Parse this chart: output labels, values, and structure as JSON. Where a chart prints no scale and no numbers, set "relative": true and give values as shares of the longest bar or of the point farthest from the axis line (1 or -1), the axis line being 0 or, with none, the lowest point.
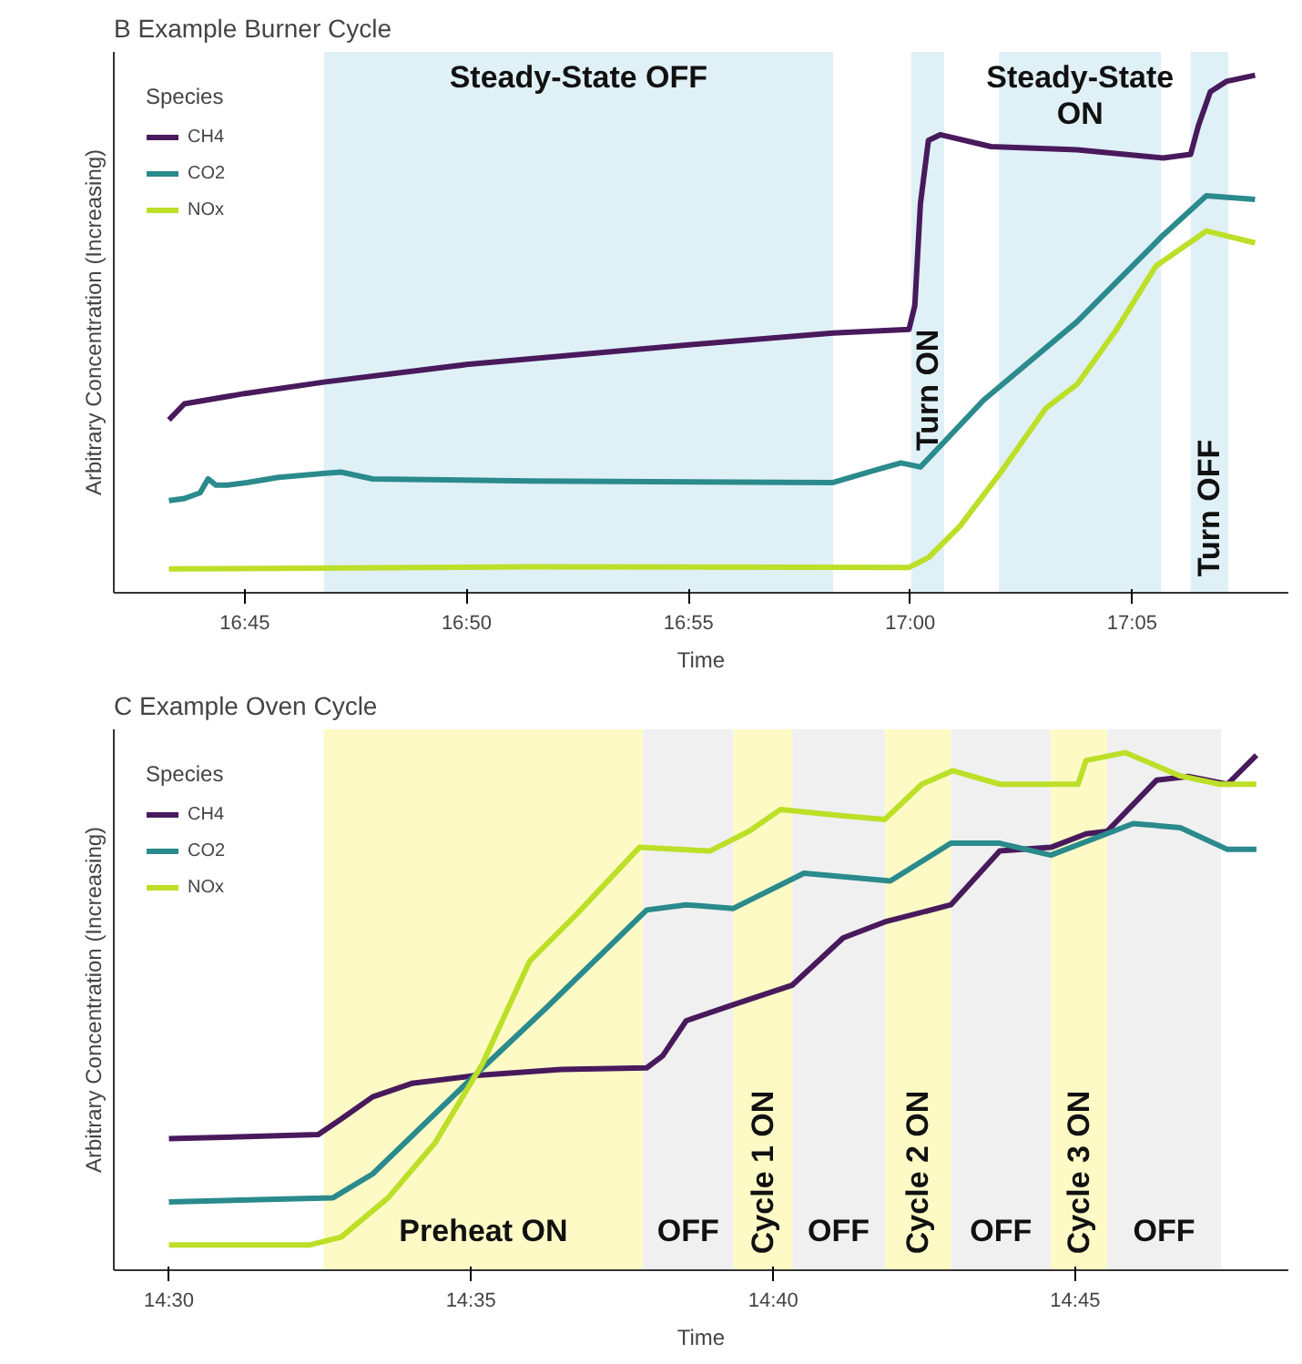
{
  "chart_data": [
    {
      "type": "line",
      "relative": true,
      "title": "B Example Burner Cycle",
      "xlabel": "Time",
      "ylabel": "Arbitrary Concentration (Increasing)",
      "legend_title": "Species",
      "legend": "top left",
      "grid": false,
      "xlim": [
        16.7008,
        17.142
      ],
      "xticks": [
        {
          "value": 16.75,
          "label": "16:45"
        },
        {
          "value": 16.8333,
          "label": "16:50"
        },
        {
          "value": 16.9167,
          "label": "16:55"
        },
        {
          "value": 17.0,
          "label": "17:00"
        },
        {
          "value": 17.0833,
          "label": "17:05"
        }
      ],
      "bands": [
        {
          "axis": "x",
          "from": 16.7797,
          "to": 16.971,
          "label": "Steady-State OFF",
          "color": "#e0f0f7"
        },
        {
          "axis": "x",
          "from": 17.0003,
          "to": 17.0127,
          "label": "Turn ON",
          "color": "#e0f0f7"
        },
        {
          "axis": "x",
          "from": 17.0333,
          "to": 17.0942,
          "label": "Steady-State ON",
          "color": "#e0f0f7"
        },
        {
          "axis": "x",
          "from": 17.1053,
          "to": 17.1195,
          "label": "Turn OFF",
          "color": "#e0f0f7"
        }
      ],
      "series": [
        {
          "name": "CH4",
          "color": "#481a5c",
          "x": [
            16.7215,
            16.7273,
            16.75,
            16.7797,
            16.8333,
            16.9167,
            16.971,
            16.9995,
            17.0017,
            17.0038,
            17.0068,
            17.0112,
            17.0303,
            17.0627,
            17.095,
            17.1053,
            17.1083,
            17.1127,
            17.1187,
            17.1295
          ],
          "values": [
            0.334,
            0.365,
            0.385,
            0.407,
            0.441,
            0.479,
            0.502,
            0.509,
            0.555,
            0.752,
            0.874,
            0.885,
            0.862,
            0.856,
            0.84,
            0.847,
            0.904,
            0.968,
            0.988,
            1.0
          ]
        },
        {
          "name": "CO2",
          "color": "#2a8a8c",
          "x": [
            16.7215,
            16.7273,
            16.7332,
            16.7362,
            16.7392,
            16.7435,
            16.7508,
            16.7627,
            16.7803,
            16.7862,
            16.798,
            16.8568,
            16.971,
            16.9862,
            16.9965,
            17.0038,
            17.0275,
            17.0627,
            17.095,
            17.1112,
            17.1295
          ],
          "values": [
            0.178,
            0.182,
            0.193,
            0.22,
            0.208,
            0.208,
            0.213,
            0.223,
            0.231,
            0.233,
            0.22,
            0.216,
            0.213,
            0.236,
            0.251,
            0.243,
            0.372,
            0.524,
            0.691,
            0.767,
            0.76
          ]
        },
        {
          "name": "NOx",
          "color": "#bcdf27",
          "x": [
            16.7215,
            16.8568,
            16.9995,
            17.0068,
            17.0187,
            17.0333,
            17.051,
            17.0627,
            17.0775,
            17.0922,
            17.1112,
            17.1295
          ],
          "values": [
            0.046,
            0.05,
            0.049,
            0.068,
            0.129,
            0.228,
            0.357,
            0.403,
            0.509,
            0.631,
            0.699,
            0.676
          ]
        }
      ]
    },
    {
      "type": "line",
      "relative": true,
      "title": "C Example Oven Cycle",
      "xlabel": "Time",
      "ylabel": "Arbitrary Concentration (Increasing)",
      "legend_title": "Species",
      "legend": "top left",
      "grid": false,
      "xlim": [
        14.4848,
        14.8088
      ],
      "xticks": [
        {
          "value": 14.5,
          "label": "14:30"
        },
        {
          "value": 14.5833,
          "label": "14:35"
        },
        {
          "value": 14.6667,
          "label": "14:40"
        },
        {
          "value": 14.75,
          "label": "14:45"
        }
      ],
      "bands": [
        {
          "axis": "x",
          "from": 14.5427,
          "to": 14.6308,
          "label": "Preheat ON",
          "color": "#fdfac6"
        },
        {
          "axis": "x",
          "from": 14.6308,
          "to": 14.6557,
          "label": "OFF",
          "color": "#f0f0f0"
        },
        {
          "axis": "x",
          "from": 14.6557,
          "to": 14.672,
          "label": "Cycle 1 ON",
          "color": "#fdfac6"
        },
        {
          "axis": "x",
          "from": 14.672,
          "to": 14.6975,
          "label": "OFF",
          "color": "#f0f0f0"
        },
        {
          "axis": "x",
          "from": 14.6975,
          "to": 14.7157,
          "label": "Cycle 2 ON",
          "color": "#fdfac6"
        },
        {
          "axis": "x",
          "from": 14.7157,
          "to": 14.7433,
          "label": "OFF",
          "color": "#f0f0f0"
        },
        {
          "axis": "x",
          "from": 14.7433,
          "to": 14.7588,
          "label": "Cycle 3 ON",
          "color": "#fdfac6"
        },
        {
          "axis": "x",
          "from": 14.7588,
          "to": 14.7902,
          "label": "OFF",
          "color": "#f0f0f0"
        }
      ],
      "series": [
        {
          "name": "CH4",
          "color": "#481a5c",
          "x": [
            14.5,
            14.5412,
            14.5475,
            14.5562,
            14.567,
            14.5843,
            14.6082,
            14.6318,
            14.6362,
            14.6427,
            14.6557,
            14.672,
            14.686,
            14.6975,
            14.7157,
            14.7292,
            14.7433,
            14.753,
            14.7588,
            14.7725,
            14.7812,
            14.792,
            14.8
          ],
          "values": [
            0.254,
            0.262,
            0.292,
            0.335,
            0.361,
            0.376,
            0.388,
            0.391,
            0.414,
            0.482,
            0.513,
            0.551,
            0.642,
            0.673,
            0.706,
            0.81,
            0.817,
            0.843,
            0.848,
            0.947,
            0.954,
            0.939,
            0.995
          ]
        },
        {
          "name": "CO2",
          "color": "#2a8a8c",
          "x": [
            14.5,
            14.5453,
            14.5562,
            14.5843,
            14.6038,
            14.6318,
            14.6427,
            14.6557,
            14.6752,
            14.699,
            14.7157,
            14.7292,
            14.7433,
            14.766,
            14.779,
            14.792,
            14.8
          ],
          "values": [
            0.132,
            0.14,
            0.186,
            0.376,
            0.505,
            0.696,
            0.706,
            0.699,
            0.767,
            0.752,
            0.825,
            0.825,
            0.802,
            0.863,
            0.855,
            0.813,
            0.813
          ]
        },
        {
          "name": "NOx",
          "color": "#bcdf27",
          "x": [
            14.5,
            14.539,
            14.5475,
            14.5605,
            14.5735,
            14.5865,
            14.5995,
            14.6125,
            14.6298,
            14.6492,
            14.66,
            14.6687,
            14.686,
            14.6975,
            14.7077,
            14.7162,
            14.7292,
            14.7508,
            14.753,
            14.7638,
            14.779,
            14.7898,
            14.8
          ],
          "values": [
            0.049,
            0.049,
            0.064,
            0.14,
            0.247,
            0.399,
            0.597,
            0.688,
            0.817,
            0.81,
            0.848,
            0.89,
            0.878,
            0.871,
            0.939,
            0.965,
            0.939,
            0.939,
            0.985,
            1.0,
            0.955,
            0.939,
            0.939
          ]
        }
      ]
    }
  ]
}
